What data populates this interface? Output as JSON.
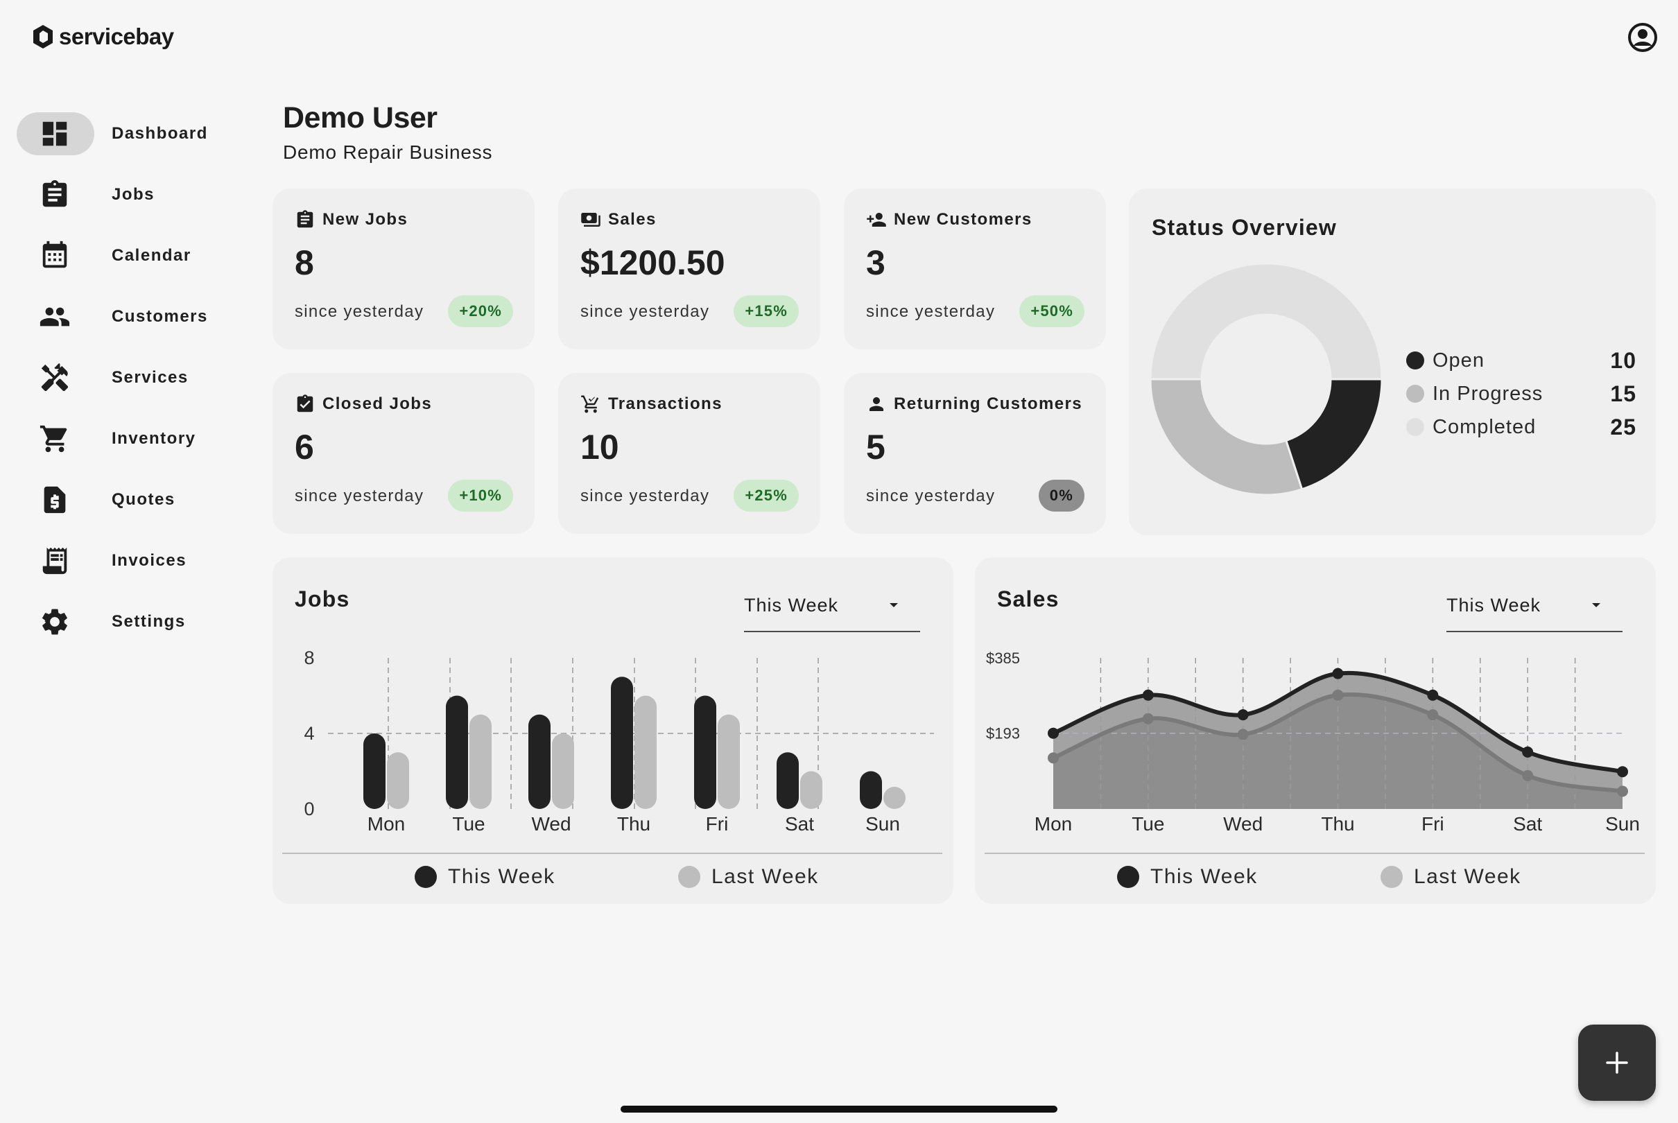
{
  "app": {
    "brand": "servicebay"
  },
  "sidebar": {
    "items": [
      {
        "label": "Dashboard",
        "icon": "dashboard-icon",
        "active": true
      },
      {
        "label": "Jobs",
        "icon": "clipboard-icon"
      },
      {
        "label": "Calendar",
        "icon": "calendar-icon"
      },
      {
        "label": "Customers",
        "icon": "people-icon"
      },
      {
        "label": "Services",
        "icon": "tools-icon"
      },
      {
        "label": "Inventory",
        "icon": "cart-icon"
      },
      {
        "label": "Quotes",
        "icon": "dollar-document-icon"
      },
      {
        "label": "Invoices",
        "icon": "receipt-icon"
      },
      {
        "label": "Settings",
        "icon": "gear-icon"
      }
    ]
  },
  "header": {
    "title": "Demo User",
    "subtitle": "Demo Repair Business"
  },
  "stats": [
    {
      "title": "New Jobs",
      "icon": "clipboard-icon",
      "value": "8",
      "since": "since yesterday",
      "change": "+20%",
      "trend": "positive"
    },
    {
      "title": "Sales",
      "icon": "cash-icon",
      "value": "$1200.50",
      "since": "since yesterday",
      "change": "+15%",
      "trend": "positive"
    },
    {
      "title": "New Customers",
      "icon": "person-add-icon",
      "value": "3",
      "since": "since yesterday",
      "change": "+50%",
      "trend": "positive"
    },
    {
      "title": "Closed Jobs",
      "icon": "clipboard-check-icon",
      "value": "6",
      "since": "since yesterday",
      "change": "+10%",
      "trend": "positive"
    },
    {
      "title": "Transactions",
      "icon": "cart-check-icon",
      "value": "10",
      "since": "since yesterday",
      "change": "+25%",
      "trend": "positive"
    },
    {
      "title": "Returning Customers",
      "icon": "person-icon",
      "value": "5",
      "since": "since yesterday",
      "change": "0%",
      "trend": "neutral"
    }
  ],
  "status_overview": {
    "title": "Status Overview",
    "items": [
      {
        "label": "Open",
        "value": "10",
        "color": "#222222"
      },
      {
        "label": "In Progress",
        "value": "15",
        "color": "#bdbdbd"
      },
      {
        "label": "Completed",
        "value": "25",
        "color": "#e0e0e0"
      }
    ]
  },
  "jobs_chart": {
    "title": "Jobs",
    "period": "This Week",
    "legend": [
      "This Week",
      "Last Week"
    ]
  },
  "sales_chart": {
    "title": "Sales",
    "period": "This Week",
    "legend": [
      "This Week",
      "Last Week"
    ]
  },
  "chart_data": [
    {
      "type": "bar",
      "title": "Jobs",
      "categories": [
        "Mon",
        "Tue",
        "Wed",
        "Thu",
        "Fri",
        "Sat",
        "Sun"
      ],
      "series": [
        {
          "name": "This Week",
          "values": [
            4,
            6,
            5,
            7,
            6,
            3,
            2
          ],
          "color": "#222222"
        },
        {
          "name": "Last Week",
          "values": [
            3,
            5,
            4,
            6,
            5,
            2,
            1
          ],
          "color": "#bdbdbd"
        }
      ],
      "yticks": [
        0,
        4,
        8
      ],
      "ylim": [
        0,
        8
      ],
      "grid": "dashed"
    },
    {
      "type": "area",
      "title": "Sales",
      "categories": [
        "Mon",
        "Tue",
        "Wed",
        "Thu",
        "Fri",
        "Sat",
        "Sun"
      ],
      "series": [
        {
          "name": "This Week",
          "values": [
            193,
            290,
            240,
            345,
            290,
            145,
            95
          ],
          "color": "#222222"
        },
        {
          "name": "Last Week",
          "values": [
            130,
            230,
            190,
            290,
            240,
            85,
            45
          ],
          "color": "#8c8c8c"
        }
      ],
      "yticks": [
        "$193",
        "$385"
      ],
      "ylim": [
        0,
        385
      ],
      "grid": "dashed"
    }
  ],
  "fab": {
    "label": "+"
  }
}
